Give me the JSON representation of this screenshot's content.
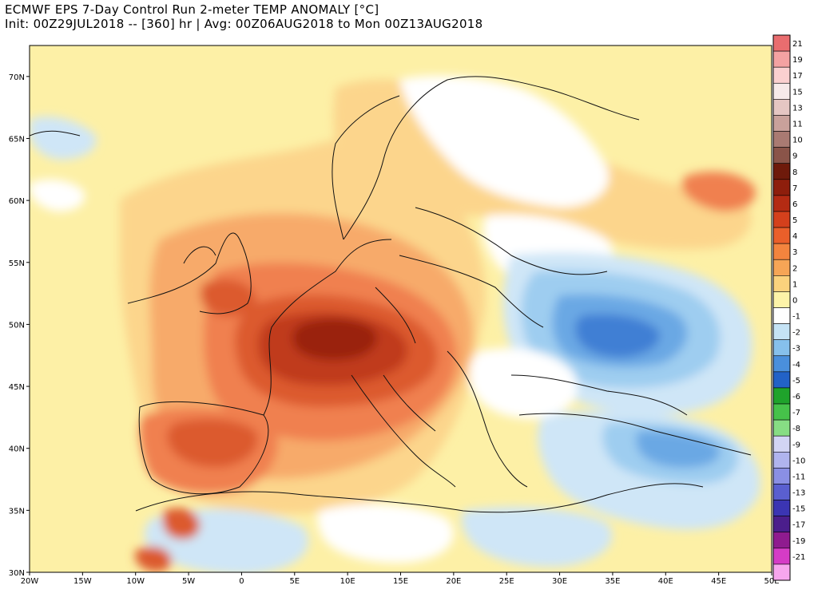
{
  "header": {
    "line1": "ECMWF EPS 7-Day Control Run 2-meter TEMP ANOMALY [°C]",
    "line2": "Init: 00Z29JUL2018 -- [360] hr | Avg: 00Z06AUG2018 to Mon 00Z13AUG2018"
  },
  "map": {
    "lon_labels": [
      "20W",
      "15W",
      "10W",
      "5W",
      "0",
      "5E",
      "10E",
      "15E",
      "20E",
      "25E",
      "30E",
      "35E",
      "40E",
      "45E",
      "50E"
    ],
    "lat_labels": [
      "70N",
      "65N",
      "60N",
      "55N",
      "50N",
      "45N",
      "40N",
      "35N",
      "30N"
    ],
    "lon_range": [
      -20,
      50
    ],
    "lat_range": [
      30,
      72.5
    ],
    "background_colors": {
      "neutral": "#ffffff",
      "warm_1": "#fdf0a6",
      "warm_2": "#fcd58c",
      "warm_3": "#f7aa6a",
      "warm_4": "#f08050",
      "warm_5": "#dc5a2e",
      "warm_6": "#c03a1a",
      "warm_7": "#9a2410",
      "cool_1": "#cfe6f7",
      "cool_2": "#9ecdf0",
      "cool_3": "#6aa8e4",
      "cool_4": "#3f7fd4"
    }
  },
  "colorbar": {
    "levels": [
      {
        "label": "21",
        "color": "#e96d6f"
      },
      {
        "label": "19",
        "color": "#f4a2a2"
      },
      {
        "label": "17",
        "color": "#fbd0d0"
      },
      {
        "label": "15",
        "color": "#f7eaea"
      },
      {
        "label": "13",
        "color": "#e5c6c3"
      },
      {
        "label": "11",
        "color": "#c9a19b"
      },
      {
        "label": "10",
        "color": "#a97a72"
      },
      {
        "label": "9",
        "color": "#8a5449"
      },
      {
        "label": "8",
        "color": "#6e1a0b"
      },
      {
        "label": "7",
        "color": "#8e1e0c"
      },
      {
        "label": "6",
        "color": "#b42b13"
      },
      {
        "label": "5",
        "color": "#d4401c"
      },
      {
        "label": "4",
        "color": "#ea5f2a"
      },
      {
        "label": "3",
        "color": "#f3843e"
      },
      {
        "label": "2",
        "color": "#f6a556"
      },
      {
        "label": "1",
        "color": "#fbd27d"
      },
      {
        "label": "0",
        "color": "#fdf3a8"
      },
      {
        "label": "-1",
        "color": "#ffffff"
      },
      {
        "label": "-2",
        "color": "#c5e3f5"
      },
      {
        "label": "-3",
        "color": "#86c0ec"
      },
      {
        "label": "-4",
        "color": "#4a8fdc"
      },
      {
        "label": "-5",
        "color": "#2262c7"
      },
      {
        "label": "-6",
        "color": "#1fa32b"
      },
      {
        "label": "-7",
        "color": "#46c24a"
      },
      {
        "label": "-8",
        "color": "#87dd84"
      },
      {
        "label": "-9",
        "color": "#d2d4f4"
      },
      {
        "label": "-10",
        "color": "#b0b4ee"
      },
      {
        "label": "-11",
        "color": "#8a8fe4"
      },
      {
        "label": "-13",
        "color": "#5a5fd0"
      },
      {
        "label": "-15",
        "color": "#3b35b3"
      },
      {
        "label": "-17",
        "color": "#4b1e8c"
      },
      {
        "label": "-19",
        "color": "#8f1b8f"
      },
      {
        "label": "-21",
        "color": "#d53cc6"
      },
      {
        "label": "",
        "color": "#f7a6ee"
      }
    ]
  }
}
